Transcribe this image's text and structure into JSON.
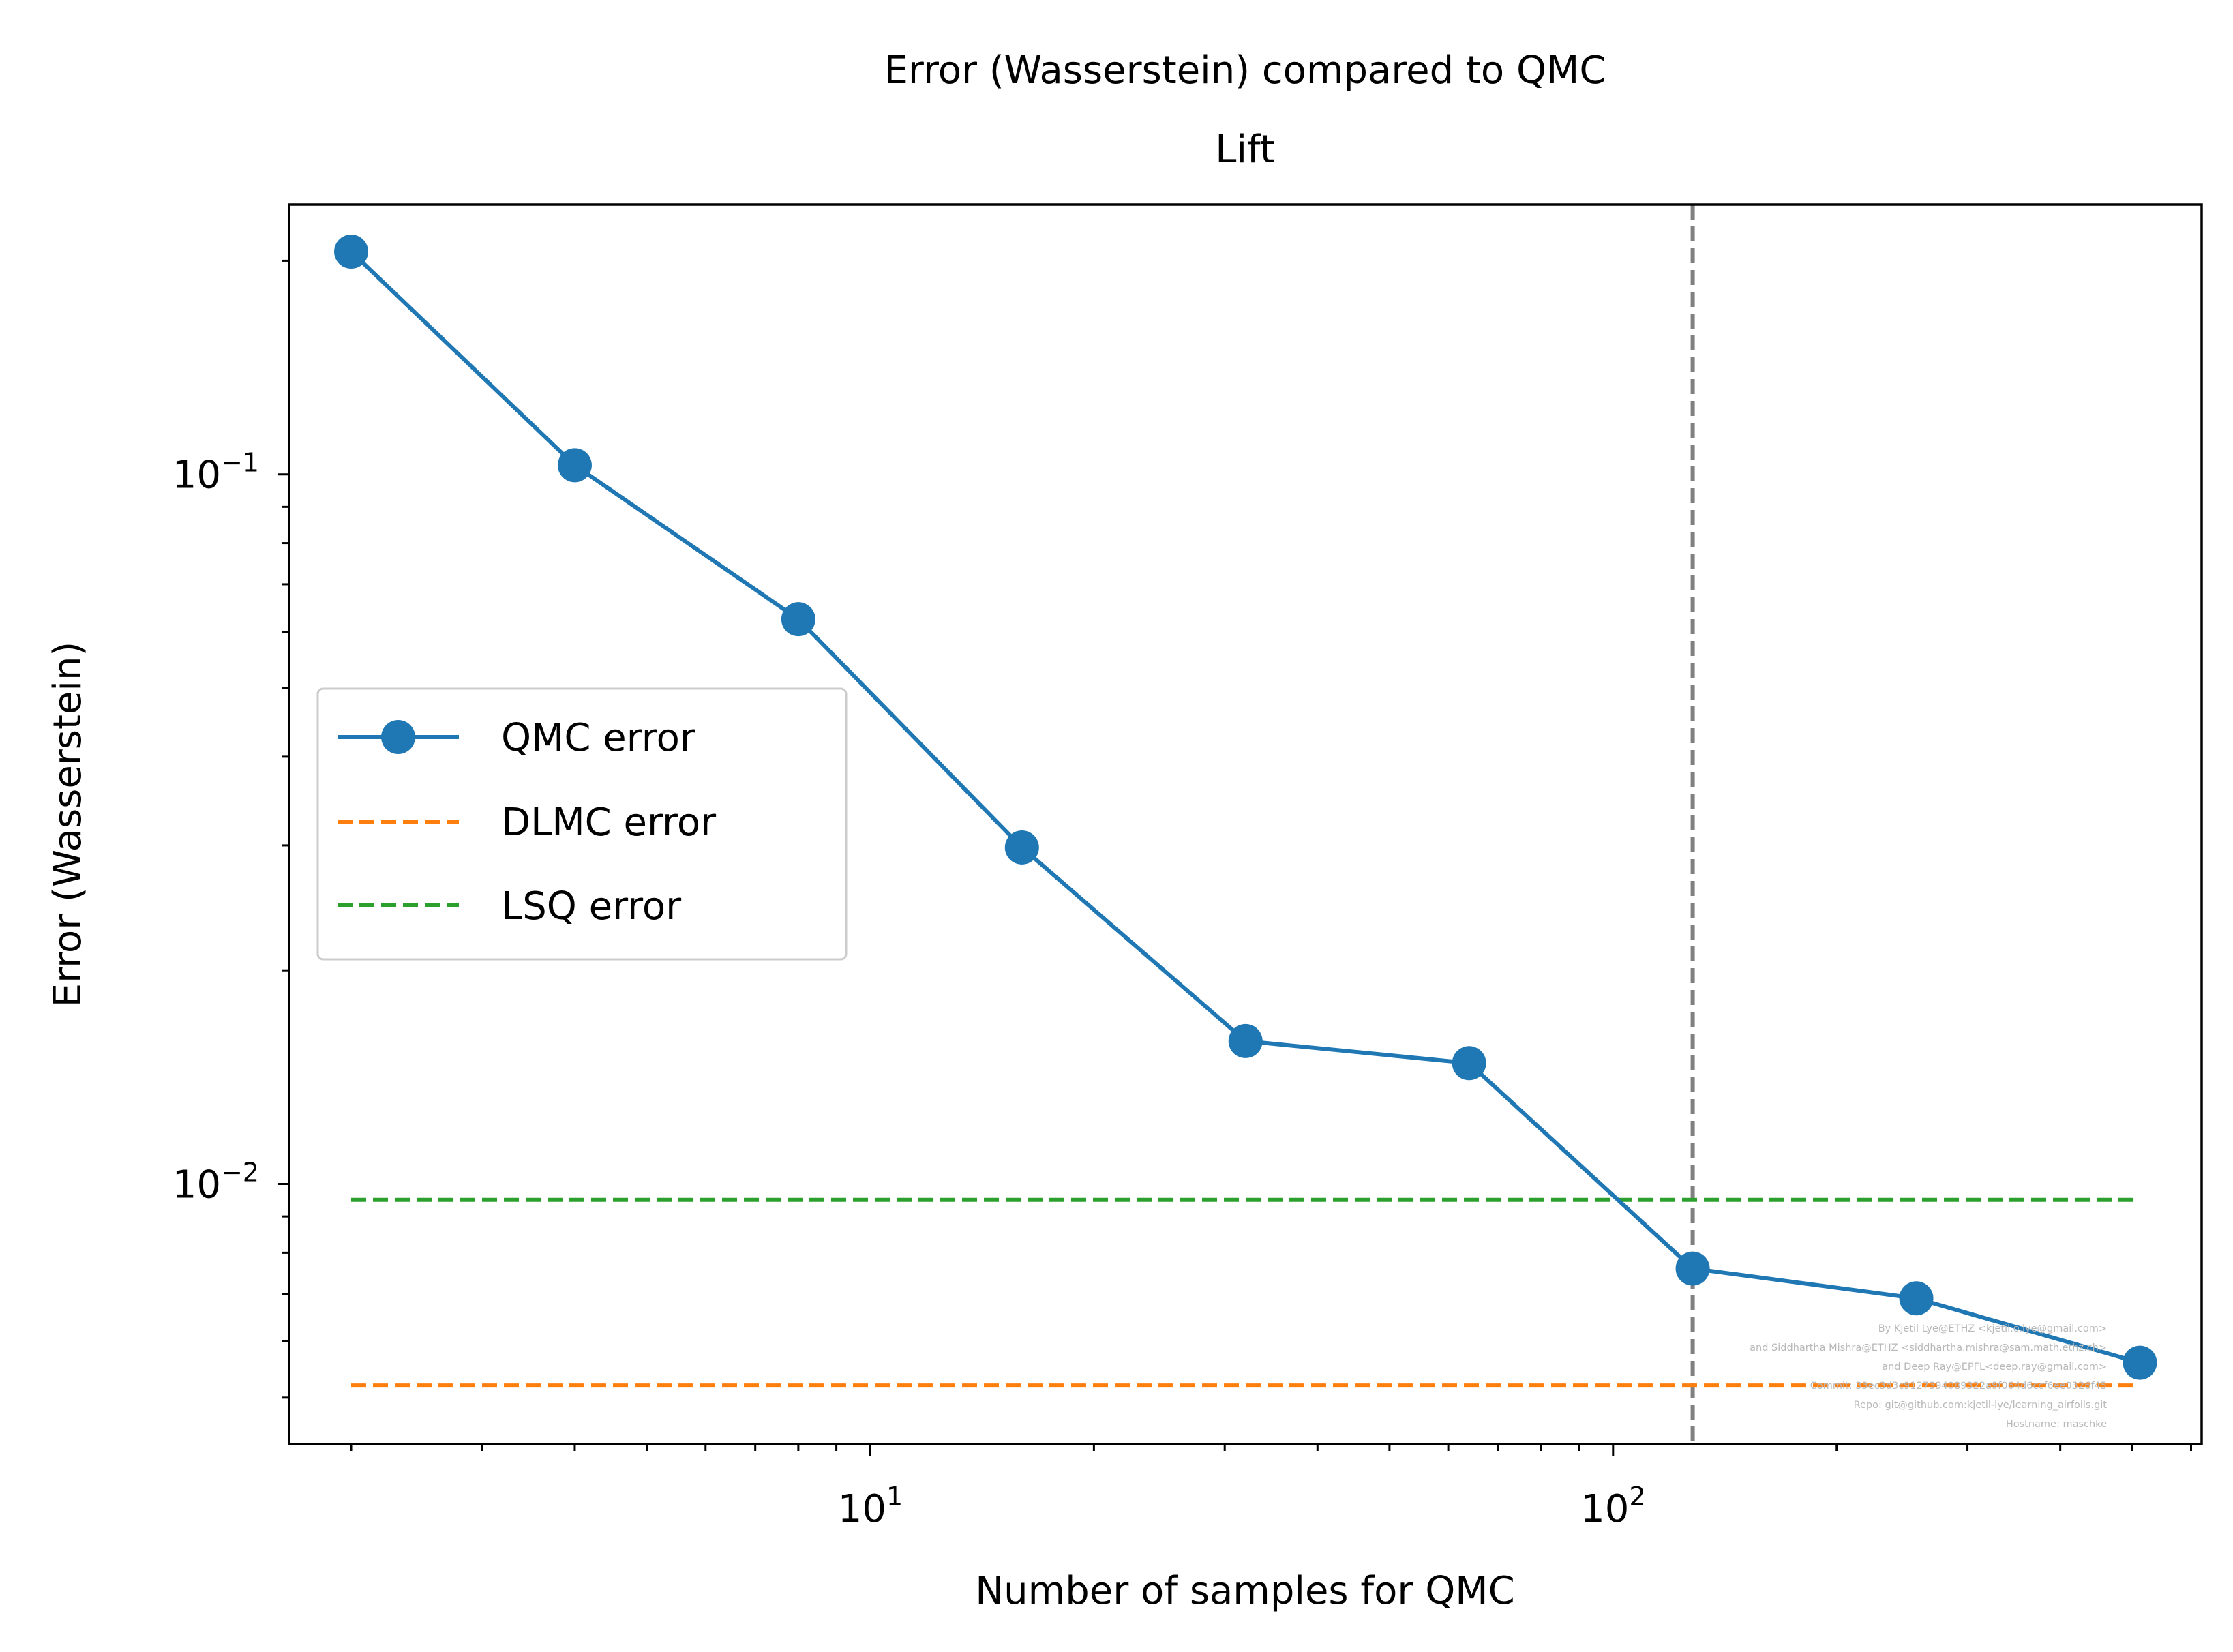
{
  "chart_data": {
    "type": "line",
    "title": "Error (Wasserstein) compared to QMC",
    "subtitle": "Lift",
    "xlabel": "Number of samples for QMC",
    "ylabel": "Error (Wasserstein)",
    "xscale": "log",
    "yscale": "log",
    "xlim": [
      1.65,
      620
    ],
    "ylim": [
      0.0043,
      0.24
    ],
    "x_ticks": [
      {
        "value": 10,
        "base": "10",
        "exp": "1"
      },
      {
        "value": 100,
        "base": "10",
        "exp": "2"
      }
    ],
    "y_ticks": [
      {
        "value": 0.1,
        "base": "10",
        "exp": "−1"
      },
      {
        "value": 0.01,
        "base": "10",
        "exp": "−2"
      }
    ],
    "grid": false,
    "legend_position": "center-left",
    "series": [
      {
        "name": "QMC error",
        "style": "solid-marker",
        "color": "#1f77b4",
        "x": [
          2,
          4,
          8,
          16,
          32,
          64,
          128,
          256,
          512
        ],
        "y": [
          0.206,
          0.103,
          0.0625,
          0.0298,
          0.0159,
          0.0148,
          0.0076,
          0.0069,
          0.0056
        ]
      },
      {
        "name": "DLMC error",
        "style": "dashed",
        "color": "#ff7f0e",
        "x": [
          2,
          512
        ],
        "y": [
          0.0052,
          0.0052
        ]
      },
      {
        "name": "LSQ error",
        "style": "dashed",
        "color": "#2ca02c",
        "x": [
          2,
          512
        ],
        "y": [
          0.0095,
          0.0095
        ]
      }
    ],
    "vline": {
      "x": 128,
      "color": "#808080",
      "style": "dashed"
    },
    "watermark": [
      "By Kjetil Lye@ETHZ <kjetil.o.lye@gmail.com>",
      "and Siddhartha Mishra@ETHZ <siddhartha.mishra@sam.math.ethz.ch>",
      "and Deep Ray@EPFL<deep.ray@gmail.com>",
      "Commit: 33ec3d3c9127394089322a9f064d6ccf6ee0326f45",
      "Repo: git@github.com:kjetil-lye/learning_airfoils.git",
      "Hostname: maschke"
    ]
  }
}
